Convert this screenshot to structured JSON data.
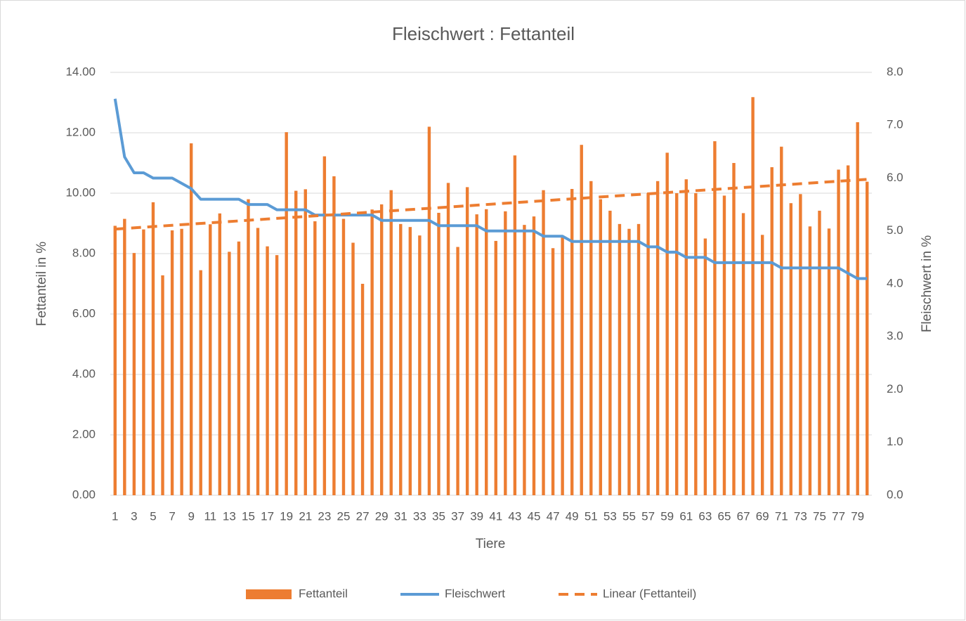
{
  "chart_data": {
    "type": "bar_line",
    "title": "Fleischwert : Fettanteil",
    "x_label": "Tiere",
    "y_label": "Fettanteil in %",
    "y2_label": "Fleischwert in %",
    "categories": [
      1,
      null,
      3,
      null,
      5,
      null,
      7,
      null,
      9,
      null,
      11,
      null,
      13,
      null,
      15,
      null,
      17,
      null,
      19,
      null,
      21,
      null,
      23,
      null,
      25,
      null,
      27,
      null,
      29,
      null,
      31,
      null,
      33,
      null,
      35,
      null,
      37,
      null,
      39,
      null,
      41,
      null,
      43,
      null,
      45,
      null,
      47,
      null,
      49,
      null,
      51,
      null,
      53,
      null,
      55,
      null,
      57,
      null,
      59,
      null,
      61,
      null,
      63,
      null,
      65,
      null,
      67,
      null,
      69,
      null,
      71,
      null,
      73,
      null,
      75,
      null,
      77,
      null,
      79,
      null
    ],
    "series": [
      {
        "name": "Fettanteil",
        "type": "bar",
        "color": "#ed7d31",
        "values": [
          8.92,
          9.15,
          8.02,
          8.8,
          9.7,
          7.28,
          8.77,
          8.82,
          11.65,
          7.45,
          8.97,
          9.33,
          8.06,
          8.4,
          9.8,
          8.85,
          8.24,
          7.95,
          12.02,
          10.08,
          10.13,
          9.07,
          11.22,
          10.56,
          9.15,
          8.36,
          7.0,
          9.46,
          9.63,
          10.1,
          8.98,
          8.88,
          8.6,
          12.2,
          9.35,
          10.34,
          8.22,
          10.2,
          9.3,
          9.47,
          8.42,
          9.4,
          11.25,
          8.95,
          9.23,
          10.1,
          8.18,
          8.55,
          10.14,
          11.6,
          10.4,
          9.8,
          9.42,
          8.98,
          8.82,
          8.98,
          10.0,
          10.4,
          11.34,
          10.0,
          10.46,
          10.0,
          8.5,
          11.72,
          9.92,
          11.0,
          9.34,
          13.18,
          8.62,
          10.86,
          11.54,
          9.67,
          9.97,
          8.9,
          9.42,
          8.83,
          10.78,
          10.92,
          12.35,
          10.38
        ]
      },
      {
        "name": "Fleischwert",
        "type": "line",
        "axis": "y2",
        "color": "#5b9bd5",
        "values": [
          7.5,
          6.4,
          6.1,
          6.1,
          6.0,
          6.0,
          6.0,
          5.9,
          5.8,
          5.6,
          5.6,
          5.6,
          5.6,
          5.6,
          5.5,
          5.5,
          5.5,
          5.4,
          5.4,
          5.4,
          5.4,
          5.3,
          5.3,
          5.3,
          5.3,
          5.3,
          5.3,
          5.3,
          5.2,
          5.2,
          5.2,
          5.2,
          5.2,
          5.2,
          5.1,
          5.1,
          5.1,
          5.1,
          5.1,
          5.0,
          5.0,
          5.0,
          5.0,
          5.0,
          5.0,
          4.9,
          4.9,
          4.9,
          4.8,
          4.8,
          4.8,
          4.8,
          4.8,
          4.8,
          4.8,
          4.8,
          4.7,
          4.7,
          4.6,
          4.6,
          4.5,
          4.5,
          4.5,
          4.4,
          4.4,
          4.4,
          4.4,
          4.4,
          4.4,
          4.4,
          4.3,
          4.3,
          4.3,
          4.3,
          4.3,
          4.3,
          4.3,
          4.2,
          4.1,
          4.1
        ]
      }
    ],
    "trendline": {
      "name": "Linear (Fettanteil)",
      "of": "series.0",
      "kind": "linear",
      "color": "#ed7d31",
      "dashed": true
    },
    "ylim": [
      0,
      14
    ],
    "yticks": [
      {
        "value": 0,
        "label": "0.00"
      },
      {
        "value": 2,
        "label": "2.00"
      },
      {
        "value": 4,
        "label": "4.00"
      },
      {
        "value": 6,
        "label": "6.00"
      },
      {
        "value": 8,
        "label": "8.00"
      },
      {
        "value": 10,
        "label": "10.00"
      },
      {
        "value": 12,
        "label": "12.00"
      },
      {
        "value": 14,
        "label": "14.00"
      }
    ],
    "y2lim": [
      0,
      8
    ],
    "y2ticks": [
      {
        "value": 0,
        "label": "0.0"
      },
      {
        "value": 1,
        "label": "1.0"
      },
      {
        "value": 2,
        "label": "2.0"
      },
      {
        "value": 3,
        "label": "3.0"
      },
      {
        "value": 4,
        "label": "4.0"
      },
      {
        "value": 5,
        "label": "5.0"
      },
      {
        "value": 6,
        "label": "6.0"
      },
      {
        "value": 7,
        "label": "7.0"
      },
      {
        "value": 8,
        "label": "8.0"
      }
    ],
    "grid": true,
    "legend": "bottom"
  }
}
